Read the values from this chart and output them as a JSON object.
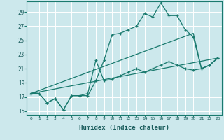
{
  "xlabel": "Humidex (Indice chaleur)",
  "bg_color": "#cce8ec",
  "grid_color": "#ffffff",
  "line_color": "#1a7a6e",
  "xlim": [
    -0.5,
    23.5
  ],
  "ylim": [
    14.5,
    30.5
  ],
  "xticks": [
    0,
    1,
    2,
    3,
    4,
    5,
    6,
    7,
    8,
    9,
    10,
    11,
    12,
    13,
    14,
    15,
    16,
    17,
    18,
    19,
    20,
    21,
    22,
    23
  ],
  "yticks": [
    15,
    17,
    19,
    21,
    23,
    25,
    27,
    29
  ],
  "line1_x": [
    0,
    1,
    2,
    3,
    4,
    5,
    6,
    7,
    8,
    9,
    10,
    11,
    12,
    13,
    14,
    15,
    16,
    17,
    18,
    19,
    20,
    21,
    22,
    23
  ],
  "line1_y": [
    17.5,
    17.5,
    16.2,
    16.8,
    15.2,
    17.2,
    17.2,
    17.2,
    19.3,
    22.2,
    25.8,
    26.0,
    26.5,
    27.0,
    28.8,
    28.3,
    30.3,
    28.5,
    28.5,
    26.5,
    25.5,
    21.0,
    21.5,
    22.5
  ],
  "line2_x": [
    0,
    1,
    2,
    3,
    4,
    5,
    6,
    7,
    8,
    9,
    10,
    11,
    12,
    13,
    14,
    15,
    16,
    17,
    18,
    19,
    20,
    21,
    22,
    23
  ],
  "line2_y": [
    17.5,
    17.5,
    16.2,
    16.8,
    15.2,
    17.2,
    17.2,
    17.5,
    22.2,
    19.3,
    19.5,
    20.0,
    20.5,
    21.0,
    20.5,
    21.0,
    21.5,
    22.0,
    21.5,
    21.0,
    20.8,
    21.0,
    21.5,
    22.5
  ],
  "line3_x": [
    0,
    23
  ],
  "line3_y": [
    17.5,
    22.5
  ],
  "line4_x": [
    0,
    20,
    21,
    22,
    23
  ],
  "line4_y": [
    17.5,
    26.0,
    21.0,
    21.5,
    22.5
  ]
}
